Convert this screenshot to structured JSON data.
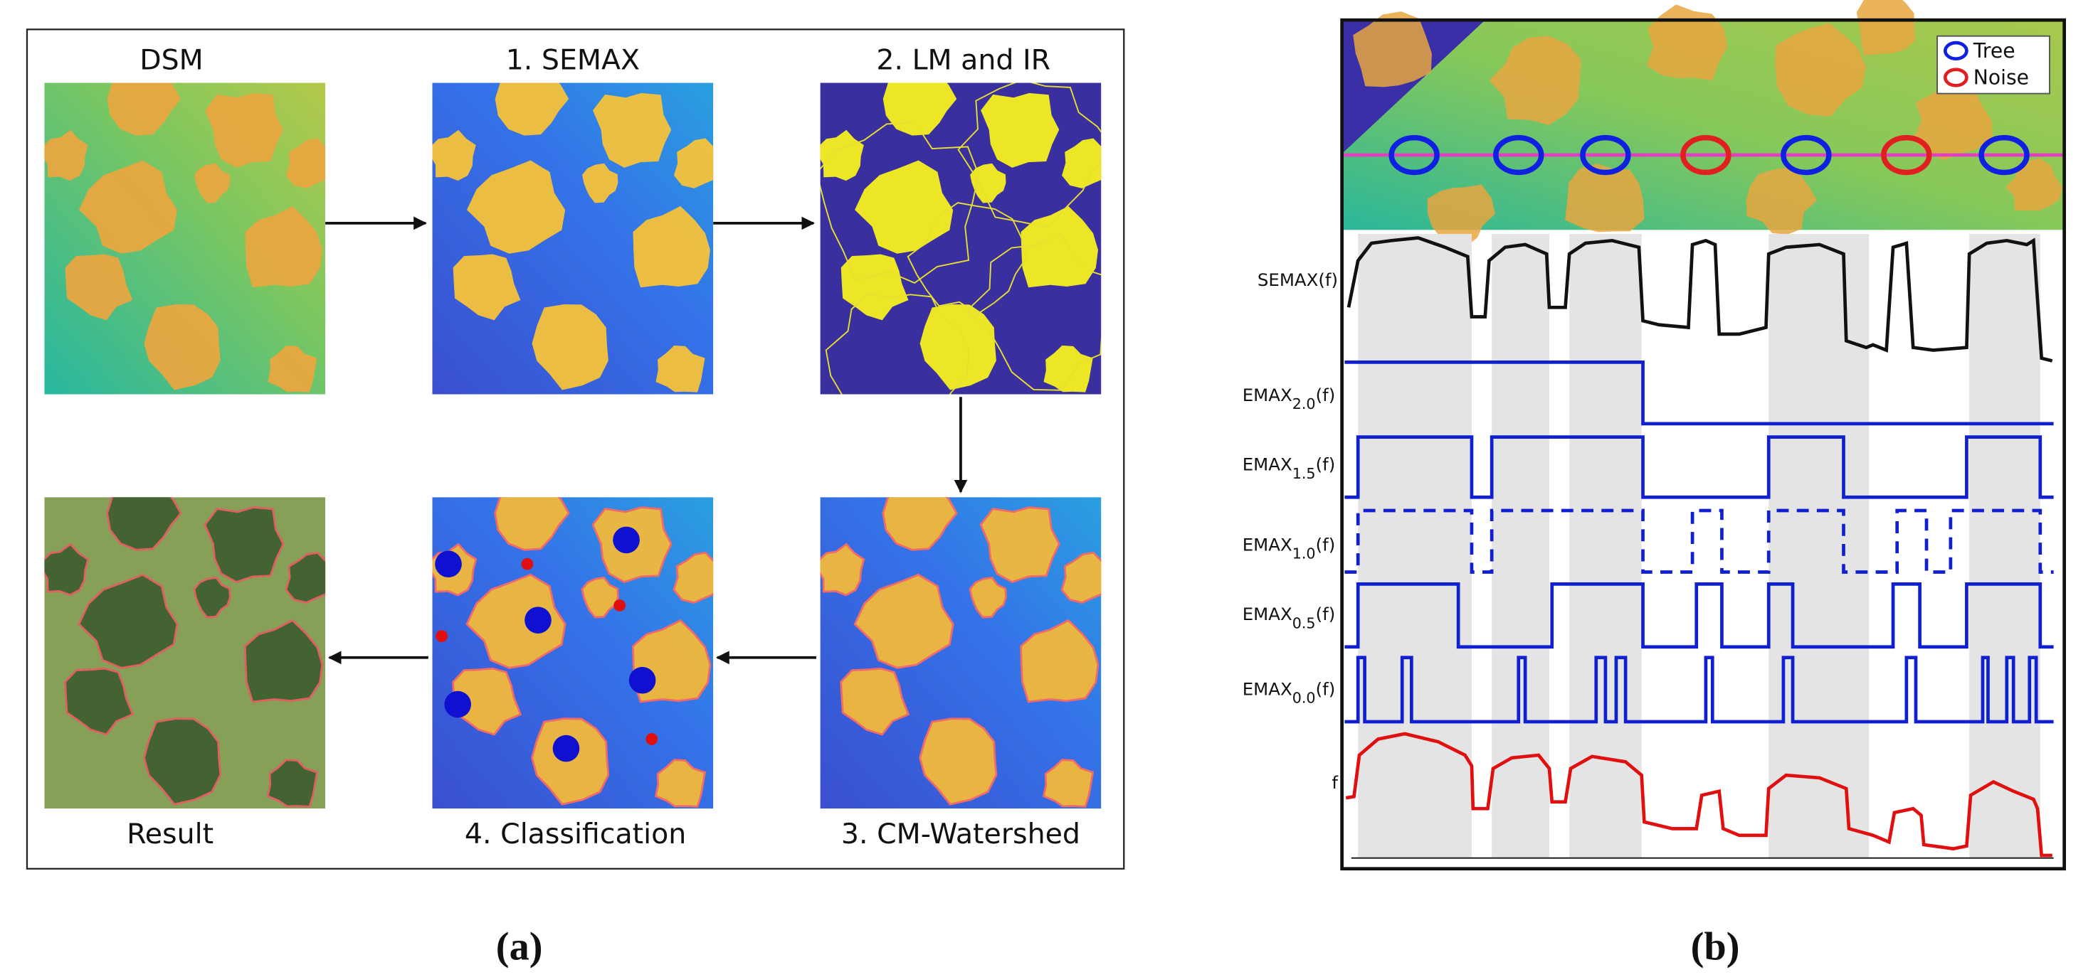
{
  "panel_a": {
    "top_labels": [
      "DSM",
      "1. SEMAX",
      "2. LM and IR"
    ],
    "bottom_labels": [
      "Result",
      "4. Classification",
      "3. CM-Watershed"
    ],
    "caption": "(a)"
  },
  "panel_b": {
    "legend": [
      "Tree",
      "Noise"
    ],
    "rows": [
      {
        "label": "SEMAX(f)"
      },
      {
        "label": "EMAX",
        "sub": "2.0",
        "suffix": "(f)"
      },
      {
        "label": "EMAX",
        "sub": "1.5",
        "suffix": "(f)"
      },
      {
        "label": "EMAX",
        "sub": "1.0",
        "suffix": "(f)"
      },
      {
        "label": "EMAX",
        "sub": "0.5",
        "suffix": "(f)"
      },
      {
        "label": "EMAX",
        "sub": "0.0",
        "suffix": "(f)"
      },
      {
        "label": "f"
      }
    ],
    "caption": "(b)"
  }
}
